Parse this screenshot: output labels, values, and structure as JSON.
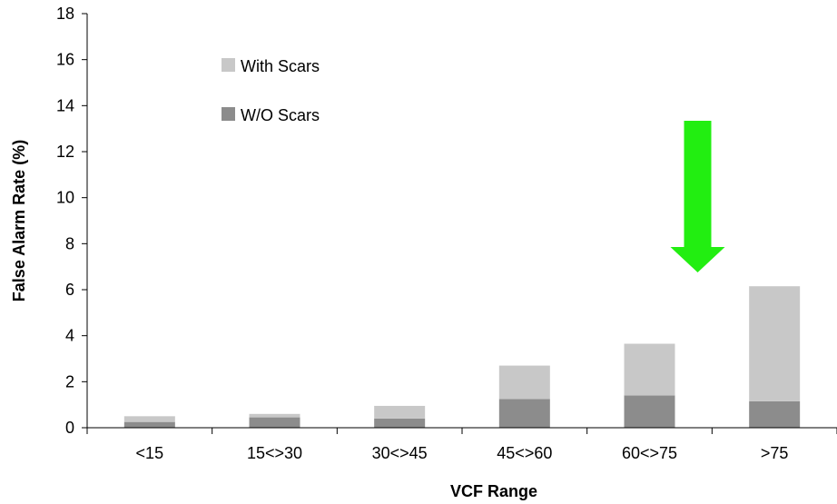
{
  "chart_data": {
    "type": "bar",
    "stacked": true,
    "categories": [
      "<15",
      "15<>30",
      "30<>45",
      "45<>60",
      "60<>75",
      ">75"
    ],
    "series": [
      {
        "name": "W/O Scars",
        "values": [
          0.25,
          0.45,
          0.4,
          1.25,
          1.4,
          1.15
        ],
        "color": "#8c8c8c"
      },
      {
        "name": "With Scars",
        "values": [
          0.25,
          0.15,
          0.55,
          1.45,
          2.25,
          5.0
        ],
        "color": "#c8c8c8"
      }
    ],
    "legend_order": [
      1,
      0
    ],
    "title": "",
    "xlabel": "VCF Range",
    "ylabel": "False Alarm Rate (%)",
    "ylim": [
      0,
      18
    ],
    "yticks": [
      0,
      2,
      4,
      6,
      8,
      10,
      12,
      14,
      16,
      18
    ],
    "grid": false,
    "legend_position": "top-left",
    "annotation": {
      "type": "arrow",
      "color": "#22ee11",
      "points_to_category": "60<>75"
    }
  }
}
